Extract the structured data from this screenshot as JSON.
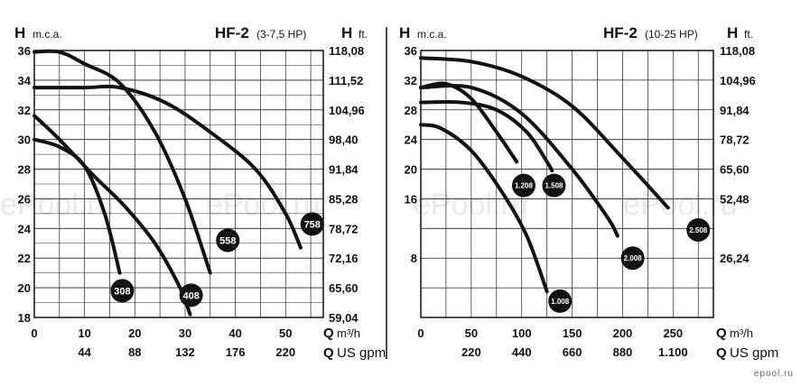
{
  "watermark": "ePool.ru",
  "brand": "epool.ru",
  "chart_data": [
    {
      "type": "line",
      "title": "HF-2",
      "subtitle": "(3-7,5 HP)",
      "y_left_label": "H",
      "y_left_unit": "m.c.a.",
      "y_right_label": "H",
      "y_right_unit": "ft.",
      "ylim": [
        18,
        36
      ],
      "xlim": [
        0,
        57.5
      ],
      "y_left_ticks": [
        "36",
        "34",
        "32",
        "30",
        "28",
        "26",
        "24",
        "22",
        "20",
        "18"
      ],
      "y_right_ticks": [
        "118,08",
        "111,52",
        "104,96",
        "98,40",
        "91,84",
        "85,28",
        "78,72",
        "72,16",
        "65,60",
        "59,04"
      ],
      "x_ticks_m3h": [
        "0",
        "10",
        "20",
        "30",
        "40",
        "50"
      ],
      "x_ticks_usgpm": [
        "44",
        "88",
        "132",
        "176",
        "220"
      ],
      "x_label_m3h": "Q",
      "x_unit_m3h": "m³/h",
      "x_label_usgpm": "Q",
      "x_unit_usgpm": "US gpm",
      "grid": true,
      "series": [
        {
          "name": "308",
          "points": [
            [
              0,
              30.0
            ],
            [
              5,
              29.5
            ],
            [
              10,
              28.2
            ],
            [
              14,
              25.0
            ],
            [
              17,
              21.0
            ]
          ],
          "label_at": [
            17.5,
            19.8
          ]
        },
        {
          "name": "408",
          "points": [
            [
              0,
              31.6
            ],
            [
              5,
              30.0
            ],
            [
              12,
              27.5
            ],
            [
              18,
              25.5
            ],
            [
              24,
              23.0
            ],
            [
              29,
              20.0
            ],
            [
              31,
              18.2
            ]
          ],
          "label_at": [
            31.2,
            19.5
          ]
        },
        {
          "name": "558",
          "points": [
            [
              0,
              35.9
            ],
            [
              5,
              35.9
            ],
            [
              10,
              35.1
            ],
            [
              17,
              33.8
            ],
            [
              24,
              30.5
            ],
            [
              30,
              26.0
            ],
            [
              35,
              21.0
            ]
          ],
          "label_at": [
            38.5,
            23.2
          ]
        },
        {
          "name": "758",
          "points": [
            [
              0,
              33.5
            ],
            [
              10,
              33.5
            ],
            [
              17,
              33.5
            ],
            [
              26,
              32.5
            ],
            [
              35,
              30.5
            ],
            [
              44,
              28.0
            ],
            [
              50,
              25.0
            ],
            [
              53,
              22.7
            ]
          ],
          "label_at": [
            55.3,
            24.3
          ]
        }
      ]
    },
    {
      "type": "line",
      "title": "HF-2",
      "subtitle": "(10-25 HP)",
      "y_left_label": "H",
      "y_left_unit": "m.c.a.",
      "y_right_label": "H",
      "y_right_unit": "ft.",
      "ylim": [
        0,
        36
      ],
      "xlim": [
        0,
        290
      ],
      "y_left_ticks": [
        "36",
        "32",
        "28",
        "24",
        "20",
        "16",
        "8"
      ],
      "y_right_ticks": [
        "118,08",
        "104,96",
        "91,84",
        "78,72",
        "65,60",
        "52,48",
        "26,24"
      ],
      "x_ticks_m3h": [
        "0",
        "50",
        "100",
        "150",
        "200",
        "250"
      ],
      "x_ticks_usgpm": [
        "220",
        "440",
        "660",
        "880",
        "1.100"
      ],
      "x_label_m3h": "Q",
      "x_unit_m3h": "m³/h",
      "x_label_usgpm": "Q",
      "x_unit_usgpm": "US gpm",
      "grid": true,
      "series": [
        {
          "name": "1.008",
          "points": [
            [
              0,
              26.0
            ],
            [
              20,
              25.5
            ],
            [
              50,
              22.5
            ],
            [
              80,
              17.0
            ],
            [
              105,
              11.0
            ],
            [
              125,
              3.5
            ]
          ],
          "label_at": [
            138,
            2.2
          ]
        },
        {
          "name": "1.208",
          "points": [
            [
              0,
              31.0
            ],
            [
              25,
              31.5
            ],
            [
              50,
              29.5
            ],
            [
              75,
              25.0
            ],
            [
              95,
              21.0
            ]
          ],
          "label_at": [
            102,
            17.8
          ]
        },
        {
          "name": "1.508",
          "points": [
            [
              0,
              29.0
            ],
            [
              40,
              29.0
            ],
            [
              75,
              28.0
            ],
            [
              105,
              25.0
            ],
            [
              125,
              21.0
            ],
            [
              130,
              19.8
            ]
          ],
          "label_at": [
            132,
            17.8
          ]
        },
        {
          "name": "2.008",
          "points": [
            [
              0,
              31.0
            ],
            [
              50,
              31.0
            ],
            [
              100,
              27.5
            ],
            [
              150,
              20.0
            ],
            [
              185,
              13.5
            ],
            [
              195,
              11.0
            ]
          ],
          "label_at": [
            210,
            8.0
          ]
        },
        {
          "name": "2.508",
          "points": [
            [
              0,
              35.0
            ],
            [
              50,
              34.5
            ],
            [
              100,
              32.5
            ],
            [
              150,
              28.5
            ],
            [
              200,
              21.5
            ],
            [
              245,
              14.8
            ]
          ],
          "label_at": [
            275,
            11.8
          ]
        }
      ]
    }
  ]
}
